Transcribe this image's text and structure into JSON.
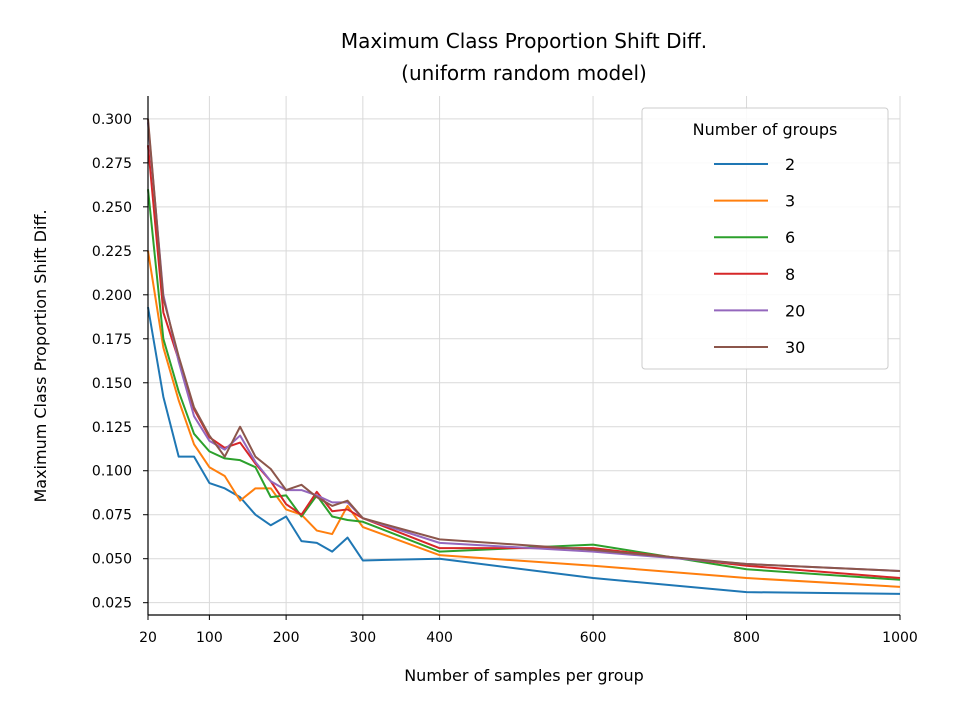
{
  "chart_data": {
    "type": "line",
    "title": "Maximum Class Proportion Shift Diff.",
    "subtitle": "(uniform random model)",
    "xlabel": "Number of samples per group",
    "ylabel": "Maximum Class Proportion Shift Diff.",
    "xlim": [
      20,
      1000
    ],
    "ylim": [
      0.018,
      0.313
    ],
    "xticks": [
      20,
      100,
      200,
      300,
      400,
      600,
      800,
      1000
    ],
    "yticks": [
      0.025,
      0.05,
      0.075,
      0.1,
      0.125,
      0.15,
      0.175,
      0.2,
      0.225,
      0.25,
      0.275,
      0.3
    ],
    "ytick_labels": [
      "0.025",
      "0.050",
      "0.075",
      "0.100",
      "0.125",
      "0.150",
      "0.175",
      "0.200",
      "0.225",
      "0.250",
      "0.275",
      "0.300"
    ],
    "grid": true,
    "legend": {
      "title": "Number of groups",
      "placement": "top-right"
    },
    "x": [
      20,
      40,
      60,
      80,
      100,
      120,
      140,
      160,
      180,
      200,
      220,
      240,
      260,
      280,
      300,
      400,
      600,
      800,
      1000
    ],
    "series": [
      {
        "name": "2",
        "color": "#1f77b4",
        "values": [
          0.193,
          0.142,
          0.108,
          0.108,
          0.093,
          0.09,
          0.085,
          0.075,
          0.069,
          0.074,
          0.06,
          0.059,
          0.054,
          0.062,
          0.049,
          0.05,
          0.039,
          0.031,
          0.03
        ]
      },
      {
        "name": "3",
        "color": "#ff7f0e",
        "values": [
          0.225,
          0.17,
          0.14,
          0.115,
          0.102,
          0.097,
          0.083,
          0.09,
          0.09,
          0.078,
          0.075,
          0.066,
          0.064,
          0.08,
          0.068,
          0.052,
          0.046,
          0.039,
          0.034
        ]
      },
      {
        "name": "6",
        "color": "#2ca02c",
        "values": [
          0.26,
          0.175,
          0.145,
          0.121,
          0.111,
          0.107,
          0.106,
          0.102,
          0.085,
          0.086,
          0.074,
          0.086,
          0.074,
          0.072,
          0.071,
          0.054,
          0.058,
          0.044,
          0.038
        ]
      },
      {
        "name": "8",
        "color": "#d62728",
        "values": [
          0.285,
          0.19,
          0.163,
          0.135,
          0.119,
          0.113,
          0.116,
          0.104,
          0.094,
          0.081,
          0.075,
          0.088,
          0.077,
          0.078,
          0.073,
          0.056,
          0.056,
          0.046,
          0.039
        ]
      },
      {
        "name": "20",
        "color": "#9467bd",
        "values": [
          0.298,
          0.2,
          0.162,
          0.131,
          0.117,
          0.112,
          0.12,
          0.105,
          0.094,
          0.089,
          0.089,
          0.086,
          0.082,
          0.082,
          0.073,
          0.059,
          0.054,
          0.047,
          0.043
        ]
      },
      {
        "name": "30",
        "color": "#8c564b",
        "values": [
          0.3,
          0.198,
          0.165,
          0.136,
          0.12,
          0.108,
          0.125,
          0.108,
          0.101,
          0.089,
          0.092,
          0.085,
          0.08,
          0.083,
          0.073,
          0.061,
          0.055,
          0.047,
          0.043
        ]
      }
    ]
  }
}
